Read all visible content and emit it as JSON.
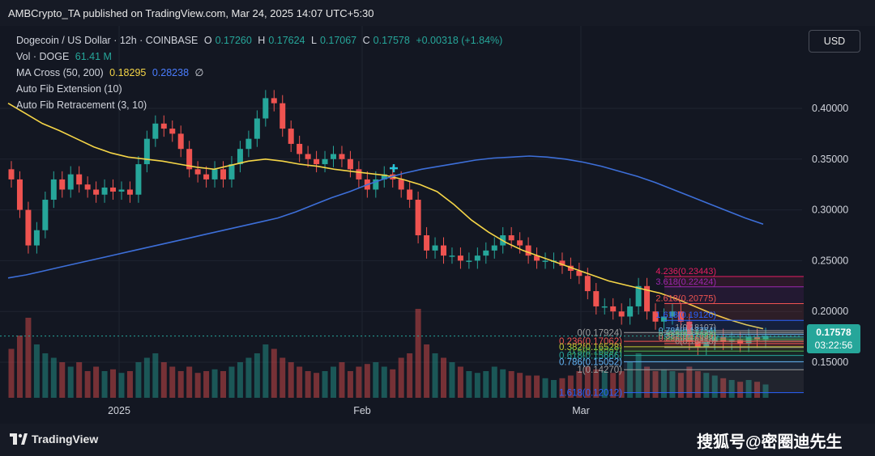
{
  "header": {
    "published": "AMBCrypto_TA published on TradingView.com, Mar 24, 2025 14:07 UTC+5:30"
  },
  "legend": {
    "symbol": "Dogecoin / US Dollar · 12h · COINBASE",
    "o_label": "O",
    "o_value": "0.17260",
    "h_label": "H",
    "h_value": "0.17624",
    "l_label": "L",
    "l_value": "0.17067",
    "c_label": "C",
    "c_value": "0.17578",
    "change": "+0.00318 (+1.84%)",
    "vol_label": "Vol · DOGE",
    "vol_value": "61.41 M",
    "ma_label": "MA Cross (50, 200)",
    "ma50_value": "0.18295",
    "ma200_value": "0.28238",
    "ma_sym": "∅",
    "fib_ext": "Auto Fib Extension (10)",
    "fib_ret": "Auto Fib Retracement (3, 10)"
  },
  "currency_button": "USD",
  "price_tag": {
    "price": "0.17578",
    "countdown": "03:22:56"
  },
  "colors": {
    "up": "#26a69a",
    "down": "#ef5350",
    "ma50": "#f5d547",
    "ma200": "#3d6fd9",
    "background": "#131722",
    "grid": "#1f2430"
  },
  "footer": {
    "brand": "TradingView",
    "watermark": "搜狐号@密圈迪先生"
  },
  "chart_data": {
    "type": "candlestick",
    "y_axis": {
      "ylim": [
        0.115,
        0.435
      ],
      "ticks": [
        "0.40000",
        "0.35000",
        "0.30000",
        "0.25000",
        "0.20000",
        "0.15000"
      ],
      "tick_values": [
        0.4,
        0.35,
        0.3,
        0.25,
        0.2,
        0.15
      ]
    },
    "x_axis": {
      "labels": [
        "2025",
        "Feb",
        "Mar"
      ]
    },
    "ohlc_close_path": [
      0.33,
      0.3,
      0.265,
      0.28,
      0.31,
      0.33,
      0.32,
      0.335,
      0.325,
      0.32,
      0.315,
      0.322,
      0.318,
      0.32,
      0.315,
      0.345,
      0.37,
      0.385,
      0.38,
      0.375,
      0.36,
      0.34,
      0.335,
      0.33,
      0.34,
      0.33,
      0.345,
      0.36,
      0.37,
      0.39,
      0.41,
      0.405,
      0.38,
      0.365,
      0.355,
      0.35,
      0.345,
      0.35,
      0.355,
      0.35,
      0.34,
      0.33,
      0.32,
      0.33,
      0.335,
      0.33,
      0.32,
      0.31,
      0.275,
      0.26,
      0.265,
      0.255,
      0.255,
      0.25,
      0.25,
      0.255,
      0.26,
      0.265,
      0.275,
      0.27,
      0.265,
      0.255,
      0.25,
      0.25,
      0.25,
      0.245,
      0.24,
      0.235,
      0.22,
      0.205,
      0.205,
      0.2,
      0.195,
      0.205,
      0.225,
      0.2,
      0.19,
      0.195,
      0.2,
      0.19,
      0.17,
      0.165,
      0.17,
      0.175,
      0.17,
      0.172,
      0.168,
      0.175,
      0.172,
      0.176
    ],
    "volume_relative": [
      0.55,
      0.7,
      0.9,
      0.6,
      0.5,
      0.45,
      0.4,
      0.35,
      0.4,
      0.3,
      0.35,
      0.3,
      0.32,
      0.28,
      0.3,
      0.4,
      0.45,
      0.5,
      0.4,
      0.35,
      0.3,
      0.35,
      0.28,
      0.3,
      0.32,
      0.3,
      0.35,
      0.4,
      0.45,
      0.5,
      0.6,
      0.55,
      0.45,
      0.4,
      0.35,
      0.3,
      0.28,
      0.3,
      0.35,
      0.4,
      0.3,
      0.35,
      0.38,
      0.4,
      0.35,
      0.32,
      0.45,
      0.5,
      1.0,
      0.6,
      0.5,
      0.45,
      0.4,
      0.35,
      0.3,
      0.28,
      0.3,
      0.35,
      0.32,
      0.3,
      0.28,
      0.25,
      0.25,
      0.22,
      0.2,
      0.22,
      0.25,
      0.3,
      0.35,
      0.32,
      0.3,
      0.28,
      0.3,
      0.4,
      0.5,
      0.35,
      0.3,
      0.32,
      0.3,
      0.28,
      0.35,
      0.3,
      0.28,
      0.25,
      0.22,
      0.2,
      0.18,
      0.2,
      0.18,
      0.15
    ],
    "series": [
      {
        "name": "MA Cross (50, 200)",
        "values": [
          0.405,
          0.395,
          0.385,
          0.378,
          0.37,
          0.362,
          0.356,
          0.352,
          0.35,
          0.348,
          0.345,
          0.342,
          0.34,
          0.344,
          0.348,
          0.35,
          0.348,
          0.345,
          0.343,
          0.34,
          0.338,
          0.336,
          0.334,
          0.33,
          0.325,
          0.318,
          0.305,
          0.29,
          0.278,
          0.268,
          0.26,
          0.254,
          0.248,
          0.242,
          0.236,
          0.23,
          0.226,
          0.222,
          0.218,
          0.212,
          0.205,
          0.198,
          0.192,
          0.187,
          0.183
        ]
      },
      {
        "name": "MA Cross (50, 200)",
        "values": [
          0.233,
          0.236,
          0.24,
          0.244,
          0.248,
          0.252,
          0.256,
          0.26,
          0.264,
          0.268,
          0.272,
          0.276,
          0.28,
          0.284,
          0.288,
          0.292,
          0.298,
          0.305,
          0.312,
          0.318,
          0.325,
          0.331,
          0.336,
          0.34,
          0.343,
          0.346,
          0.349,
          0.351,
          0.352,
          0.353,
          0.352,
          0.35,
          0.347,
          0.343,
          0.338,
          0.333,
          0.327,
          0.32,
          0.313,
          0.306,
          0.299,
          0.292,
          0.286
        ]
      }
    ],
    "fib_extension": [
      {
        "label": "4.236(0.23443)",
        "value": 0.23443,
        "color": "#e91e63"
      },
      {
        "label": "3.618(0.22424)",
        "value": 0.22424,
        "color": "#9c27b0"
      },
      {
        "label": "2.618(0.20775)",
        "value": 0.20775,
        "color": "#ef5350"
      },
      {
        "label": "1.618(0.19126)",
        "value": 0.19126,
        "color": "#2962ff"
      },
      {
        "label": "1(0.18107)",
        "value": 0.18107,
        "color": "#9e9e9e"
      },
      {
        "label": "0.786(0.17754)",
        "value": 0.17754,
        "color": "#64b5f6"
      },
      {
        "label": "0.618(0.17477)",
        "value": 0.17477,
        "color": "#26a69a"
      },
      {
        "label": "0.5(0.17283)",
        "value": 0.17283,
        "color": "#4caf50"
      },
      {
        "label": "0.382(0.17088)",
        "value": 0.17088,
        "color": "#81c784"
      },
      {
        "label": "0.236(0.16847)",
        "value": 0.16847,
        "color": "#ef5350"
      },
      {
        "label": "0(0.16458)",
        "value": 0.16458,
        "color": "#9e9e9e"
      }
    ],
    "fib_retracement": [
      {
        "label": "0(0.17924)",
        "value": 0.17924,
        "color": "#9e9e9e"
      },
      {
        "label": "0.236(0.17062)",
        "value": 0.17062,
        "color": "#ef5350"
      },
      {
        "label": "0.382(0.16528)",
        "value": 0.16528,
        "color": "#c0ca33"
      },
      {
        "label": "0.5(0.16097)",
        "value": 0.16097,
        "color": "#4caf50"
      },
      {
        "label": "0.618(0.15666)",
        "value": 0.15666,
        "color": "#26a69a"
      },
      {
        "label": "0.786(0.15052)",
        "value": 0.15052,
        "color": "#64b5f6"
      },
      {
        "label": "1(0.14270)",
        "value": 0.1427,
        "color": "#9e9e9e"
      },
      {
        "label": "1.618(0.12012)",
        "value": 0.12012,
        "color": "#2962ff"
      }
    ],
    "legend_placement": "top-left",
    "grid": true
  }
}
